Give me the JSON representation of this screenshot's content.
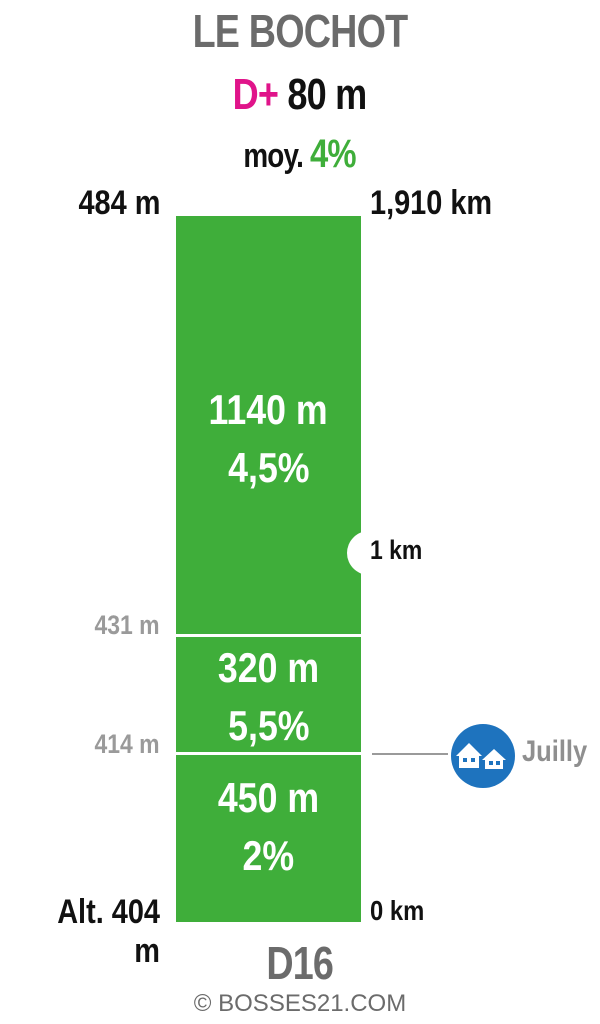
{
  "header": {
    "title": "LE BOCHOT",
    "elevation_gain_prefix": "D+",
    "elevation_gain_value": "80 m",
    "average_prefix": "moy.",
    "average_value": "4%"
  },
  "profile": {
    "summit_altitude": "484 m",
    "total_distance": "1,910 km",
    "start_altitude": "Alt. 404 m",
    "start_distance": "0 km",
    "km_marker": "1 km",
    "segments": [
      {
        "length": "1140 m",
        "grade": "4,5%",
        "color": "#3fae3a"
      },
      {
        "length": "320 m",
        "grade": "5,5%",
        "color": "#3fae3a"
      },
      {
        "length": "450 m",
        "grade": "2%",
        "color": "#3fae3a"
      }
    ],
    "intermediate_altitudes": [
      "431 m",
      "414 m"
    ],
    "waypoint": {
      "name": "Juilly",
      "icon": "houses-icon",
      "color": "#1e73be"
    }
  },
  "footer": {
    "road": "D16",
    "copyright": "© BOSSES21.COM"
  },
  "colors": {
    "grade_green": "#3fae3a",
    "dplus_magenta": "#e0148a",
    "grey_text": "#6b6b6b"
  }
}
